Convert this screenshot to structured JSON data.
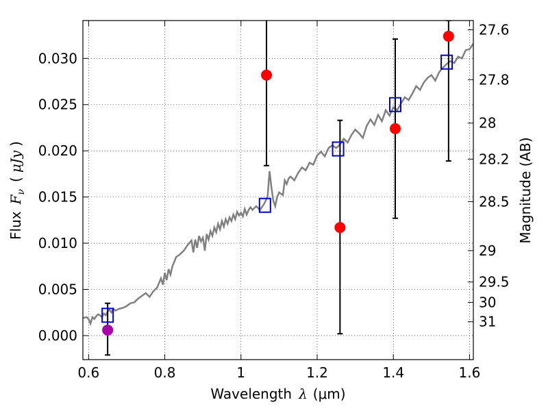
{
  "chart_data": {
    "type": "scatter",
    "xlabel_prefix": "Wavelength",
    "xlabel_symbol": "λ",
    "xlabel_unit": "(μm)",
    "ylabel_prefix": "Flux",
    "ylabel_symbol": "F",
    "ylabel_subscript": "ν",
    "ylabel_unit": "μJy",
    "y2label": "Magnitude (AB)",
    "xlim": [
      0.585,
      1.61
    ],
    "ylim": [
      -0.0026,
      0.0341
    ],
    "grid": true,
    "xticks": [
      0.6,
      0.8,
      1.0,
      1.2,
      1.4,
      1.6
    ],
    "xtick_labels": [
      "0.6",
      "0.8",
      "1",
      "1.2",
      "1.4",
      "1.6"
    ],
    "yticks": [
      0.0,
      0.005,
      0.01,
      0.015,
      0.02,
      0.025,
      0.03
    ],
    "ytick_labels": [
      "0.000",
      "0.005",
      "0.010",
      "0.015",
      "0.020",
      "0.025",
      "0.030"
    ],
    "y2ticks": [
      {
        "label": "27.6",
        "flux": 0.0331
      },
      {
        "label": "27.8",
        "flux": 0.0277
      },
      {
        "label": "28",
        "flux": 0.023
      },
      {
        "label": "28.2",
        "flux": 0.0191
      },
      {
        "label": "28.5",
        "flux": 0.0145
      },
      {
        "label": "29",
        "flux": 0.0092
      },
      {
        "label": "29.5",
        "flux": 0.0058
      },
      {
        "label": "30",
        "flux": 0.0036
      },
      {
        "label": "31",
        "flux": 0.0015
      }
    ],
    "colors": {
      "model": "#808080",
      "model_photometry": "#0000cc",
      "observed": "#ff0000",
      "observed_alt": "#aa00aa",
      "errorbar": "#000000"
    },
    "model_spectrum": {
      "x": [
        0.585,
        0.595,
        0.6,
        0.605,
        0.61,
        0.615,
        0.62,
        0.625,
        0.63,
        0.635,
        0.64,
        0.645,
        0.65,
        0.655,
        0.66,
        0.665,
        0.67,
        0.68,
        0.69,
        0.7,
        0.71,
        0.72,
        0.73,
        0.74,
        0.75,
        0.76,
        0.77,
        0.78,
        0.79,
        0.795,
        0.8,
        0.805,
        0.81,
        0.815,
        0.82,
        0.83,
        0.84,
        0.85,
        0.86,
        0.87,
        0.875,
        0.88,
        0.885,
        0.89,
        0.895,
        0.9,
        0.905,
        0.91,
        0.915,
        0.92,
        0.925,
        0.93,
        0.935,
        0.94,
        0.945,
        0.95,
        0.955,
        0.96,
        0.965,
        0.97,
        0.975,
        0.98,
        0.985,
        0.99,
        0.995,
        1.0,
        1.005,
        1.01,
        1.015,
        1.02,
        1.025,
        1.03,
        1.04,
        1.05,
        1.06,
        1.065,
        1.07,
        1.075,
        1.08,
        1.085,
        1.09,
        1.095,
        1.1,
        1.11,
        1.115,
        1.12,
        1.125,
        1.13,
        1.14,
        1.15,
        1.16,
        1.17,
        1.18,
        1.19,
        1.2,
        1.21,
        1.22,
        1.23,
        1.24,
        1.25,
        1.26,
        1.27,
        1.28,
        1.29,
        1.3,
        1.31,
        1.32,
        1.33,
        1.34,
        1.35,
        1.36,
        1.37,
        1.38,
        1.39,
        1.4,
        1.41,
        1.42,
        1.43,
        1.44,
        1.45,
        1.46,
        1.47,
        1.48,
        1.49,
        1.5,
        1.51,
        1.52,
        1.53,
        1.54,
        1.55,
        1.56,
        1.57,
        1.58,
        1.59,
        1.6,
        1.61
      ],
      "y": [
        0.0019,
        0.002,
        0.0018,
        0.0013,
        0.002,
        0.0018,
        0.0021,
        0.0023,
        0.0022,
        0.002,
        0.0024,
        0.0022,
        0.0026,
        0.0028,
        0.0025,
        0.0029,
        0.0027,
        0.0029,
        0.003,
        0.0032,
        0.0035,
        0.0036,
        0.004,
        0.0043,
        0.0046,
        0.0042,
        0.0048,
        0.0052,
        0.0062,
        0.0055,
        0.0068,
        0.006,
        0.0072,
        0.0066,
        0.0075,
        0.0085,
        0.0088,
        0.0092,
        0.0098,
        0.0103,
        0.009,
        0.0104,
        0.0095,
        0.0108,
        0.0102,
        0.0106,
        0.0092,
        0.011,
        0.0104,
        0.0113,
        0.0108,
        0.0117,
        0.0112,
        0.0121,
        0.0115,
        0.0124,
        0.0118,
        0.0126,
        0.0121,
        0.0128,
        0.0124,
        0.0131,
        0.0126,
        0.0134,
        0.013,
        0.0133,
        0.0129,
        0.0137,
        0.0131,
        0.0136,
        0.0139,
        0.0136,
        0.014,
        0.0136,
        0.0142,
        0.0146,
        0.0151,
        0.0178,
        0.016,
        0.0146,
        0.014,
        0.015,
        0.0155,
        0.0152,
        0.0168,
        0.0164,
        0.017,
        0.0172,
        0.0168,
        0.0176,
        0.0182,
        0.0179,
        0.0187,
        0.0185,
        0.0195,
        0.0199,
        0.0194,
        0.0203,
        0.0206,
        0.0203,
        0.0207,
        0.0213,
        0.0209,
        0.0217,
        0.0223,
        0.0219,
        0.0214,
        0.0227,
        0.0234,
        0.0228,
        0.0239,
        0.0232,
        0.0244,
        0.0238,
        0.0247,
        0.0244,
        0.0251,
        0.0258,
        0.0255,
        0.0262,
        0.027,
        0.0266,
        0.0274,
        0.0279,
        0.0282,
        0.0276,
        0.0285,
        0.029,
        0.0294,
        0.0297,
        0.0295,
        0.0302,
        0.03,
        0.0309,
        0.031,
        0.0316
      ]
    },
    "model_photometry": {
      "x": [
        0.65,
        1.063,
        1.255,
        1.405,
        1.54
      ],
      "y": [
        0.0022,
        0.0141,
        0.0202,
        0.025,
        0.0296
      ]
    },
    "observed": [
      {
        "x": 0.65,
        "y": 0.0006,
        "yerr_low": 0.0027,
        "yerr_high": 0.0029,
        "color": "#aa00aa"
      },
      {
        "x": 1.067,
        "y": 0.0282,
        "yerr_low": 0.0098,
        "yerr_high": 0.006,
        "color": "#ff0000"
      },
      {
        "x": 1.26,
        "y": 0.0117,
        "yerr_low": 0.0115,
        "yerr_high": 0.0116,
        "color": "#ff0000"
      },
      {
        "x": 1.405,
        "y": 0.0224,
        "yerr_low": 0.0097,
        "yerr_high": 0.0097,
        "color": "#ff0000"
      },
      {
        "x": 1.545,
        "y": 0.0324,
        "yerr_low": 0.0135,
        "yerr_high": 0.0017,
        "color": "#ff0000"
      }
    ]
  }
}
